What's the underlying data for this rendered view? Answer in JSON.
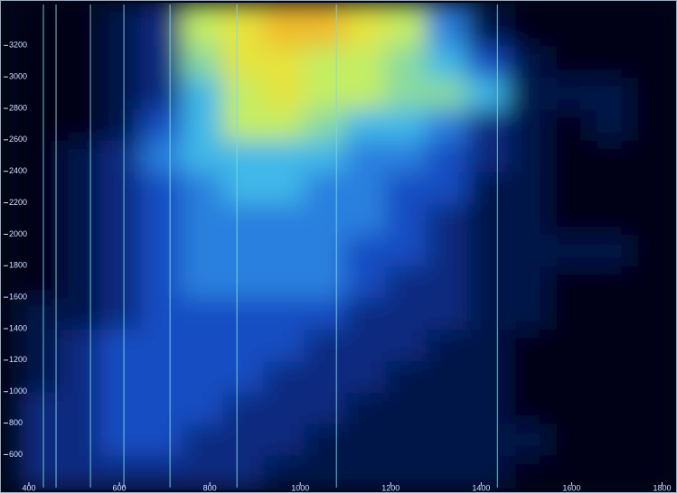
{
  "chart_data": {
    "type": "heatmap",
    "xlim": [
      380,
      1825
    ],
    "ylim": [
      390,
      3460
    ],
    "xticks": [
      400,
      600,
      800,
      1000,
      1200,
      1400,
      1600,
      1800
    ],
    "yticks": [
      600,
      800,
      1000,
      1200,
      1400,
      1600,
      1800,
      2000,
      2200,
      2400,
      2600,
      2800,
      3000,
      3200
    ],
    "xbins": [
      380,
      470,
      560,
      650,
      740,
      830,
      920,
      1010,
      1100,
      1190,
      1280,
      1370,
      1460,
      1550,
      1640,
      1730,
      1825
    ],
    "ybins": [
      390,
      600,
      800,
      1000,
      1200,
      1400,
      1600,
      1800,
      2000,
      2200,
      2400,
      2600,
      2800,
      3000,
      3200,
      3460
    ],
    "zlim": [
      0,
      10
    ],
    "colormap": [
      "#020618",
      "#08206a",
      "#1a5ad8",
      "#3fb8e8",
      "#b8f070",
      "#f0e030",
      "#f08020"
    ],
    "values": [
      [
        2,
        2,
        2,
        2,
        2,
        2,
        1,
        1,
        1,
        1,
        1,
        1,
        0,
        0,
        0,
        0
      ],
      [
        2,
        2,
        3,
        3,
        2,
        2,
        2,
        1,
        1,
        1,
        1,
        1,
        1,
        0,
        0,
        0
      ],
      [
        2,
        2,
        3,
        3,
        3,
        2,
        2,
        2,
        1,
        1,
        1,
        1,
        0,
        0,
        0,
        0
      ],
      [
        1,
        2,
        3,
        3,
        3,
        3,
        2,
        2,
        2,
        1,
        1,
        1,
        0,
        0,
        0,
        0
      ],
      [
        1,
        2,
        3,
        3,
        3,
        3,
        3,
        2,
        2,
        2,
        1,
        1,
        0,
        0,
        0,
        0
      ],
      [
        1,
        1,
        2,
        3,
        3,
        3,
        3,
        3,
        2,
        2,
        2,
        1,
        1,
        0,
        0,
        0
      ],
      [
        0,
        1,
        2,
        3,
        4,
        4,
        4,
        4,
        3,
        2,
        2,
        1,
        1,
        0,
        0,
        0
      ],
      [
        0,
        1,
        2,
        3,
        4,
        4,
        4,
        4,
        3,
        3,
        2,
        1,
        1,
        1,
        1,
        0
      ],
      [
        0,
        1,
        2,
        3,
        4,
        4,
        4,
        4,
        4,
        3,
        2,
        1,
        1,
        0,
        0,
        0
      ],
      [
        0,
        1,
        2,
        3,
        4,
        5,
        5,
        4,
        4,
        3,
        3,
        1,
        1,
        0,
        0,
        0
      ],
      [
        0,
        1,
        2,
        4,
        5,
        5,
        5,
        5,
        4,
        4,
        3,
        2,
        1,
        0,
        0,
        0
      ],
      [
        0,
        0,
        1,
        3,
        5,
        7,
        7,
        6,
        5,
        5,
        4,
        2,
        1,
        0,
        1,
        0
      ],
      [
        0,
        0,
        1,
        2,
        5,
        7,
        8,
        7,
        7,
        6,
        6,
        5,
        1,
        1,
        1,
        0
      ],
      [
        0,
        0,
        1,
        2,
        6,
        8,
        8,
        7,
        7,
        6,
        5,
        3,
        1,
        0,
        0,
        0
      ],
      [
        0,
        0,
        1,
        2,
        7,
        8,
        9,
        9,
        8,
        7,
        4,
        1,
        0,
        0,
        0,
        0
      ]
    ],
    "vlines": [
      432,
      460,
      536,
      610,
      712,
      860,
      1080,
      1436
    ]
  }
}
